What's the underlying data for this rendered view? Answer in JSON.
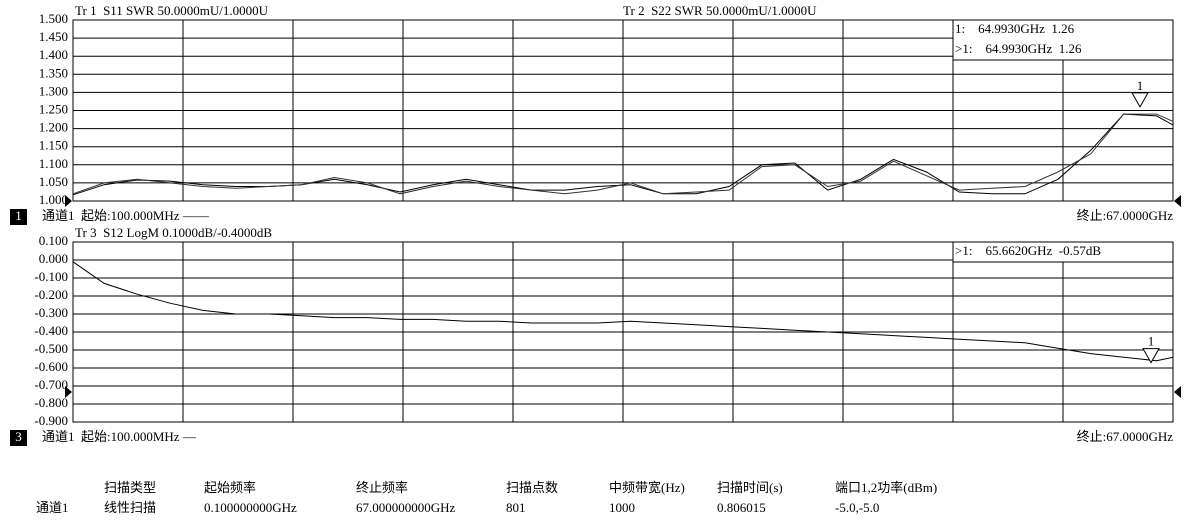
{
  "chart_data": [
    {
      "type": "line",
      "grid": true,
      "xlim": [
        0.1,
        67
      ],
      "ylim": [
        1.0,
        1.5
      ],
      "yticks": [
        {
          "value": 1.0,
          "label": "1.000"
        },
        {
          "value": 1.05,
          "label": "1.050"
        },
        {
          "value": 1.1,
          "label": "1.100"
        },
        {
          "value": 1.15,
          "label": "1.150"
        },
        {
          "value": 1.2,
          "label": "1.200"
        },
        {
          "value": 1.25,
          "label": "1.250"
        },
        {
          "value": 1.3,
          "label": "1.300"
        },
        {
          "value": 1.35,
          "label": "1.350"
        },
        {
          "value": 1.4,
          "label": "1.400"
        },
        {
          "value": 1.45,
          "label": "1.450"
        },
        {
          "value": 1.5,
          "label": "1.500"
        }
      ],
      "x": [
        0.1,
        2,
        4,
        6,
        8,
        10,
        12,
        14,
        16,
        18,
        20,
        22,
        24,
        26,
        28,
        30,
        32,
        34,
        36,
        38,
        40,
        42,
        44,
        46,
        48,
        50,
        52,
        54,
        56,
        58,
        60,
        62,
        64,
        66,
        67
      ],
      "series": [
        {
          "name": "Tr 1  S11 SWR 50.0000mU/1.0000U",
          "color": "#000000",
          "values": [
            1.017,
            1.045,
            1.058,
            1.055,
            1.045,
            1.04,
            1.04,
            1.045,
            1.06,
            1.045,
            1.025,
            1.045,
            1.06,
            1.045,
            1.03,
            1.03,
            1.04,
            1.045,
            1.02,
            1.02,
            1.04,
            1.1,
            1.105,
            1.03,
            1.06,
            1.115,
            1.08,
            1.025,
            1.02,
            1.02,
            1.06,
            1.14,
            1.24,
            1.235,
            1.21
          ]
        },
        {
          "name": "Tr 2  S22 SWR 50.0000mU/1.0000U",
          "color": "#333333",
          "values": [
            1.02,
            1.05,
            1.06,
            1.05,
            1.04,
            1.035,
            1.04,
            1.045,
            1.065,
            1.05,
            1.02,
            1.04,
            1.055,
            1.04,
            1.03,
            1.02,
            1.03,
            1.05,
            1.02,
            1.025,
            1.03,
            1.095,
            1.1,
            1.04,
            1.055,
            1.11,
            1.07,
            1.03,
            1.035,
            1.04,
            1.08,
            1.13,
            1.24,
            1.24,
            1.22
          ]
        }
      ],
      "markers": [
        {
          "label": "1",
          "x": 64.993,
          "value": 1.26
        }
      ],
      "marker_readouts": [
        "1:    64.9930GHz  1.26",
        ">1:    64.9930GHz  1.26"
      ],
      "channel_badge": "1",
      "start_label": "通道1  起始:100.000MHz ——",
      "stop_label": "终止:67.0000GHz"
    },
    {
      "type": "line",
      "grid": true,
      "xlim": [
        0.1,
        67
      ],
      "ylim": [
        -0.9,
        0.1
      ],
      "yticks": [
        {
          "value": -0.9,
          "label": "-0.900"
        },
        {
          "value": -0.8,
          "label": "-0.800"
        },
        {
          "value": -0.7,
          "label": "-0.700"
        },
        {
          "value": -0.6,
          "label": "-0.600"
        },
        {
          "value": -0.5,
          "label": "-0.500"
        },
        {
          "value": -0.4,
          "label": "-0.400"
        },
        {
          "value": -0.3,
          "label": "-0.300"
        },
        {
          "value": -0.2,
          "label": "-0.200"
        },
        {
          "value": -0.1,
          "label": "-0.100"
        },
        {
          "value": 0,
          "label": "0.000"
        },
        {
          "value": 0.1,
          "label": "0.100"
        }
      ],
      "x": [
        0.1,
        2,
        4,
        6,
        8,
        10,
        12,
        14,
        16,
        18,
        20,
        22,
        24,
        26,
        28,
        30,
        32,
        34,
        36,
        38,
        40,
        42,
        44,
        46,
        48,
        50,
        52,
        54,
        56,
        58,
        60,
        62,
        64,
        66,
        67
      ],
      "series": [
        {
          "name": "Tr 3  S12 LogM 0.1000dB/-0.4000dB",
          "color": "#000000",
          "values": [
            -0.01,
            -0.13,
            -0.19,
            -0.24,
            -0.28,
            -0.3,
            -0.3,
            -0.31,
            -0.32,
            -0.32,
            -0.33,
            -0.33,
            -0.34,
            -0.34,
            -0.35,
            -0.35,
            -0.35,
            -0.34,
            -0.35,
            -0.36,
            -0.37,
            -0.38,
            -0.39,
            -0.4,
            -0.41,
            -0.42,
            -0.43,
            -0.44,
            -0.45,
            -0.46,
            -0.49,
            -0.52,
            -0.54,
            -0.56,
            -0.54
          ]
        }
      ],
      "markers": [
        {
          "label": "1",
          "x": 65.662,
          "value": -0.57
        }
      ],
      "marker_readouts": [
        ">1:    65.6620GHz  -0.57dB"
      ],
      "channel_badge": "3",
      "start_label": "通道1  起始:100.000MHz —",
      "stop_label": "终止:67.0000GHz"
    }
  ],
  "channel_table": {
    "headers": [
      "扫描类型",
      "起始频率",
      "终止频率",
      "扫描点数",
      "中频带宽(Hz)",
      "扫描时间(s)",
      "端口1,2功率(dBm)"
    ],
    "rows": [
      {
        "label": "通道1",
        "cells": [
          "线性扫描",
          "0.100000000GHz",
          "67.000000000GHz",
          "801",
          "1000",
          "0.806015",
          "-5.0,-5.0"
        ]
      }
    ]
  }
}
